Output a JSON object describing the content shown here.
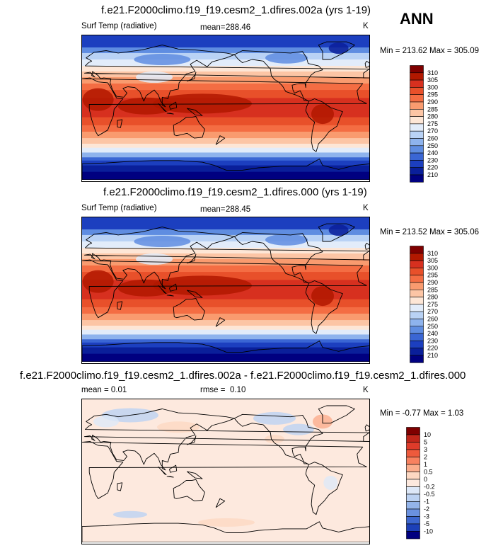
{
  "header": {
    "season": "ANN"
  },
  "panels": [
    {
      "title": "f.e21.F2000climo.f19_f19.cesm2_1.dfires.002a (yrs 1-19)",
      "left_label": "Surf Temp (radiative)",
      "stat_label": "mean=",
      "stat_value": "288.46",
      "units": "K",
      "minmax": "Min = 213.62 Max = 305.09",
      "colorbar": {
        "labels": [
          "310",
          "305",
          "300",
          "295",
          "290",
          "285",
          "280",
          "275",
          "270",
          "260",
          "250",
          "240",
          "230",
          "220",
          "210"
        ],
        "colors": [
          "#7f0000",
          "#b21800",
          "#d7301f",
          "#e8502a",
          "#f46d43",
          "#f99b6f",
          "#fcc5a5",
          "#fde6d6",
          "#e2ecfa",
          "#b9d2f5",
          "#8eb3ed",
          "#5f8de1",
          "#3a66d4",
          "#1c3fbf",
          "#0a1f9a",
          "#000080"
        ]
      },
      "type": "abs"
    },
    {
      "title": "f.e21.F2000climo.f19_f19.cesm2_1.dfires.000 (yrs 1-19)",
      "left_label": "Surf Temp (radiative)",
      "stat_label": "mean=",
      "stat_value": "288.45",
      "units": "K",
      "minmax": "Min = 213.52 Max = 305.06",
      "colorbar": {
        "labels": [
          "310",
          "305",
          "300",
          "295",
          "290",
          "285",
          "280",
          "275",
          "270",
          "260",
          "250",
          "240",
          "230",
          "220",
          "210"
        ],
        "colors": [
          "#7f0000",
          "#b21800",
          "#d7301f",
          "#e8502a",
          "#f46d43",
          "#f99b6f",
          "#fcc5a5",
          "#fde6d6",
          "#e2ecfa",
          "#b9d2f5",
          "#8eb3ed",
          "#5f8de1",
          "#3a66d4",
          "#1c3fbf",
          "#0a1f9a",
          "#000080"
        ]
      },
      "type": "abs"
    },
    {
      "title": "f.e21.F2000climo.f19_f19.cesm2_1.dfires.002a - f.e21.F2000climo.f19_f19.cesm2_1.dfires.000",
      "left_label": "mean =   0.01",
      "stat_label": "rmse =",
      "stat_value": "0.10",
      "units": "K",
      "minmax": "Min =  -0.77 Max =   1.03",
      "colorbar": {
        "labels": [
          "10",
          "5",
          "3",
          "2",
          "1",
          "0.5",
          "0",
          "-0.2",
          "-0.5",
          "-1",
          "-2",
          "-3",
          "-5",
          "-10"
        ],
        "colors": [
          "#7f0000",
          "#c0261a",
          "#de3b2a",
          "#ee5a3c",
          "#f8815f",
          "#fbad8c",
          "#fdd8c2",
          "#fde9de",
          "#dde8f8",
          "#bcd2f2",
          "#93b4ea",
          "#6a91df",
          "#3d67cf",
          "#1c40b8",
          "#000080"
        ]
      },
      "type": "diff"
    }
  ]
}
